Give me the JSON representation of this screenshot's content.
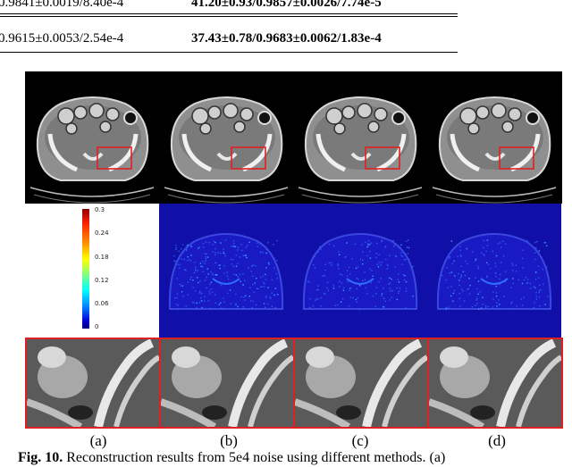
{
  "table": {
    "row1": {
      "col_left": "0.9841±0.0019/8.40e-4",
      "col_right": "41.20±0.93/0.9857±0.0026/7.74e-5"
    },
    "row2": {
      "col_left": "0.9615±0.0053/2.54e-4",
      "col_right": "37.43±0.78/0.9683±0.0062/1.83e-4"
    }
  },
  "figure": {
    "colorbar_ticks": [
      "0.3",
      "0.24",
      "0.18",
      "0.12",
      "0.06",
      "0"
    ],
    "panel_labels": [
      "(a)",
      "(b)",
      "(c)",
      "(d)"
    ],
    "colors": {
      "roi_box": "#e02020",
      "error_map_bg": "#1010a8"
    }
  },
  "caption": {
    "label": "Fig. 10.",
    "text": "Reconstruction results from 5e4 noise using different methods. (a)"
  }
}
